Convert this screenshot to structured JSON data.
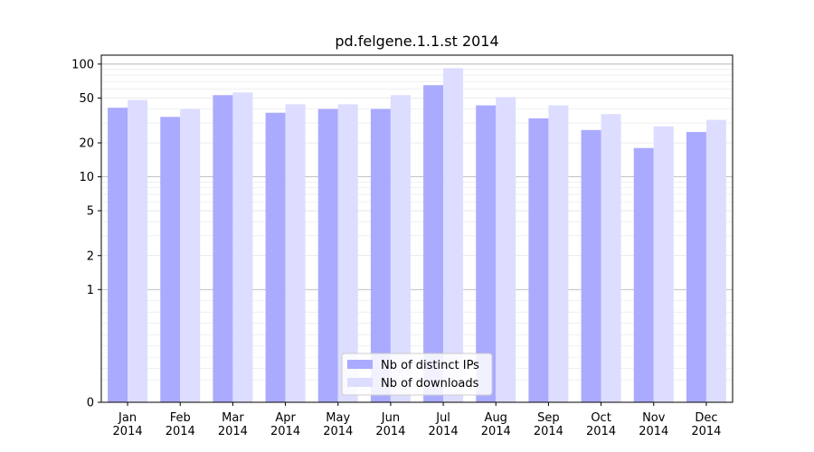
{
  "chart_data": {
    "type": "bar",
    "title": "pd.felgene.1.1.st 2014",
    "xlabel": "",
    "ylabel": "",
    "y_scale": "symlog",
    "ylim": [
      0,
      120
    ],
    "y_ticks": [
      0,
      1,
      2,
      5,
      10,
      20,
      50,
      100
    ],
    "categories": [
      {
        "month": "Jan",
        "year": "2014"
      },
      {
        "month": "Feb",
        "year": "2014"
      },
      {
        "month": "Mar",
        "year": "2014"
      },
      {
        "month": "Apr",
        "year": "2014"
      },
      {
        "month": "May",
        "year": "2014"
      },
      {
        "month": "Jun",
        "year": "2014"
      },
      {
        "month": "Jul",
        "year": "2014"
      },
      {
        "month": "Aug",
        "year": "2014"
      },
      {
        "month": "Sep",
        "year": "2014"
      },
      {
        "month": "Oct",
        "year": "2014"
      },
      {
        "month": "Nov",
        "year": "2014"
      },
      {
        "month": "Dec",
        "year": "2014"
      }
    ],
    "series": [
      {
        "name": "Nb of distinct IPs",
        "color": "#aaaaff",
        "values": [
          41,
          34,
          53,
          37,
          40,
          40,
          65,
          43,
          33,
          26,
          18,
          25
        ]
      },
      {
        "name": "Nb of downloads",
        "color": "#ddddff",
        "values": [
          48,
          40,
          56,
          44,
          44,
          53,
          92,
          51,
          43,
          36,
          28,
          32
        ]
      }
    ],
    "legend": "bottom-center",
    "grid": true
  }
}
